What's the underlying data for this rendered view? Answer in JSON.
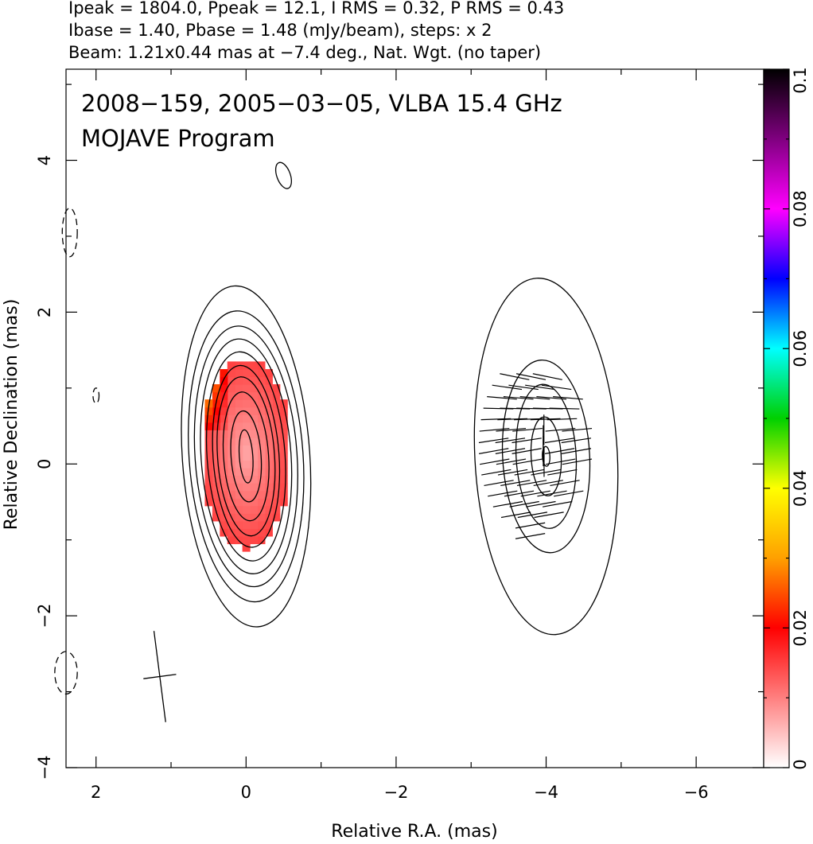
{
  "header": {
    "line1": "Ipeak = 1804.0, Ppeak = 12.1, I RMS = 0.32, P RMS = 0.43",
    "line2": "Ibase = 1.40, Pbase = 1.48 (mJy/beam), steps: x 2",
    "line3": "Beam: 1.21x0.44 mas at −7.4 deg., Nat. Wgt. (no taper)"
  },
  "chart_data": {
    "type": "heatmap",
    "title": "2008−159, 2005−03−05, VLBA 15.4 GHz",
    "subtitle": "MOJAVE Program",
    "xlabel": "Relative R.A. (mas)",
    "ylabel": "Relative Declination (mas)",
    "xlim": [
      2.4,
      -6.9
    ],
    "ylim": [
      -4.0,
      5.2
    ],
    "x_ticks": [
      2,
      0,
      -2,
      -4,
      -6
    ],
    "x_tick_labels": [
      "2",
      "0",
      "−2",
      "−4",
      "−6"
    ],
    "y_ticks": [
      -4,
      -2,
      0,
      2,
      4
    ],
    "y_tick_labels": [
      "−4",
      "−2",
      "0",
      "2",
      "4"
    ],
    "colorbar": {
      "range": [
        0,
        0.1
      ],
      "ticks": [
        0,
        0.02,
        0.04,
        0.06,
        0.08,
        0.1
      ],
      "tick_labels": [
        "0",
        "0.02",
        "0.04",
        "0.06",
        "0.08",
        "0.1"
      ],
      "colors": [
        "#ffffff",
        "#ff0000",
        "#ffa000",
        "#ffff00",
        "#00d000",
        "#00ffff",
        "#0000ff",
        "#ff00ff",
        "#000000"
      ]
    },
    "contours": {
      "core": {
        "center": [
          0.0,
          0.1
        ],
        "levels": [
          {
            "a": 0.09,
            "b": 0.35
          },
          {
            "a": 0.2,
            "b": 0.6
          },
          {
            "a": 0.3,
            "b": 0.85
          },
          {
            "a": 0.38,
            "b": 1.05
          },
          {
            "a": 0.44,
            "b": 1.2
          },
          {
            "a": 0.52,
            "b": 1.38
          },
          {
            "a": 0.6,
            "b": 1.55
          },
          {
            "a": 0.68,
            "b": 1.72
          },
          {
            "a": 0.76,
            "b": 1.92
          },
          {
            "a": 0.85,
            "b": 2.25
          }
        ]
      },
      "jet": {
        "center": [
          -4.0,
          0.1
        ],
        "levels": [
          {
            "a": 0.05,
            "b": 0.13
          },
          {
            "a": 0.2,
            "b": 0.52
          },
          {
            "a": 0.4,
            "b": 0.95
          },
          {
            "a": 0.58,
            "b": 1.27
          },
          {
            "a": 0.95,
            "b": 2.35
          }
        ]
      },
      "negative": [
        {
          "center": [
            2.35,
            3.05
          ],
          "a": 0.1,
          "b": 0.32
        },
        {
          "center": [
            2.0,
            0.9
          ],
          "a": 0.04,
          "b": 0.1
        },
        {
          "center": [
            2.4,
            -2.75
          ],
          "a": 0.15,
          "b": 0.28
        }
      ],
      "small": [
        {
          "center": [
            -0.5,
            3.8
          ],
          "a": 0.09,
          "b": 0.18
        }
      ]
    },
    "polarization_fraction": {
      "region": "core",
      "center": [
        0.0,
        0.15
      ],
      "a": 0.6,
      "b": 1.25,
      "value_range": [
        0.005,
        0.05
      ]
    },
    "evpa_region": {
      "center": [
        -4.0,
        0.25
      ],
      "x_range": [
        -3.3,
        -4.45
      ],
      "y_range": [
        -0.95,
        1.15
      ]
    },
    "beam": {
      "center": [
        1.15,
        -2.8
      ],
      "major_mas": 1.21,
      "minor_mas": 0.44,
      "pa_deg": -7.4
    }
  }
}
